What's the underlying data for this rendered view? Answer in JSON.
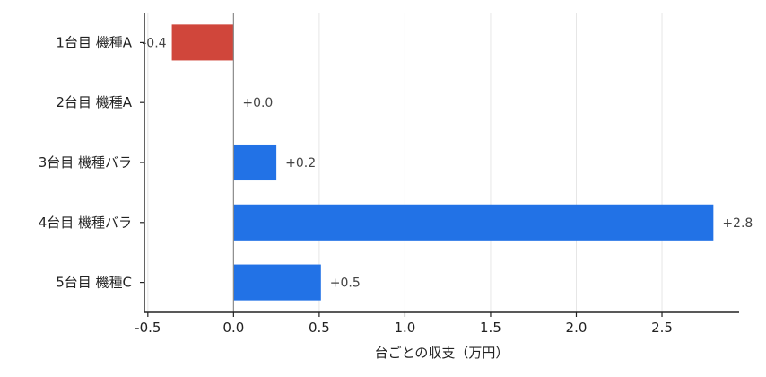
{
  "chart_data": {
    "type": "bar",
    "orientation": "horizontal",
    "categories": [
      "1台目 機種A",
      "2台目 機種A",
      "3台目 機種バラ",
      "4台目 機種バラ",
      "5台目 機種C"
    ],
    "values": [
      -0.36,
      0.0,
      0.25,
      2.8,
      0.51
    ],
    "data_labels": [
      "-0.4",
      "+0.0",
      "+0.2",
      "+2.8",
      "+0.5"
    ],
    "xlabel": "台ごとの収支（万円）",
    "ylabel": "",
    "xlim": [
      -0.52,
      2.95
    ],
    "xticks": [
      -0.5,
      0.0,
      0.5,
      1.0,
      1.5,
      2.0,
      2.5
    ],
    "xtick_labels": [
      "-0.5",
      "0.0",
      "0.5",
      "1.0",
      "1.5",
      "2.0",
      "2.5"
    ],
    "grid": "vertical",
    "colors": {
      "positive": "#2272e6",
      "negative": "#d0463b",
      "zero_line": "#8a8a8a",
      "grid": "#e6e6e6"
    }
  }
}
